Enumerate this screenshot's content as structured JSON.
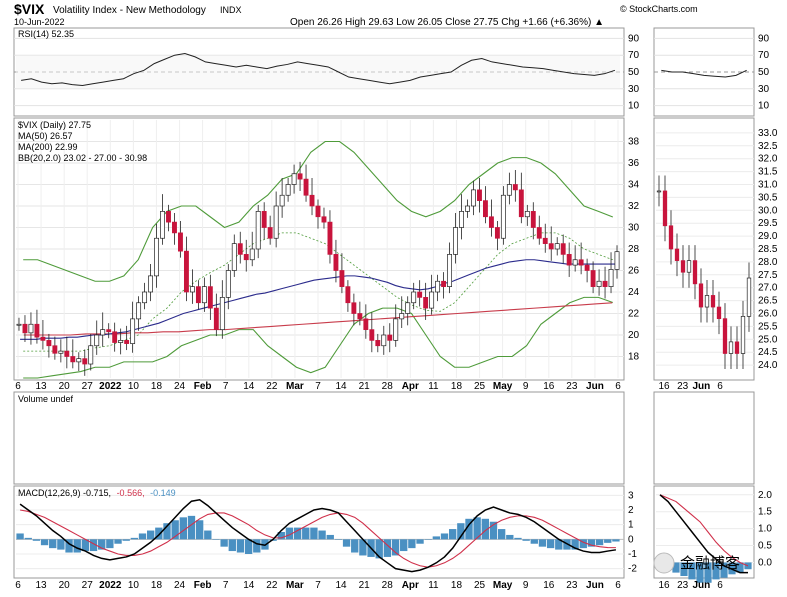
{
  "header": {
    "symbol": "$VIX",
    "name": "Volatility Index - New Methodology",
    "exchange": "INDX",
    "date": "10-Jun-2022",
    "source": "© StockCharts.com",
    "quote": "Open 26.26  High 29.63  Low 26.05  Close 27.75  Chg +1.66 (+6.36%) ▲"
  },
  "watermark": "金融博客",
  "colors": {
    "up": "#ffffff",
    "down": "#c8143c",
    "ma50": "#2b2b8c",
    "ma200": "#c83c4b",
    "bb": "#4f9b3a",
    "rsi": "#222222",
    "macd": "#000000",
    "signal": "#d0304a",
    "hist": "#4a90c2"
  },
  "chart_data": [
    {
      "type": "line",
      "panel": "rsi",
      "legend": "RSI(14) 52.35",
      "yticks": [
        10,
        30,
        50,
        70,
        90
      ],
      "ylim": [
        0,
        100
      ],
      "series": [
        {
          "name": "RSI(14)",
          "values": [
            40,
            42,
            38,
            36,
            37,
            35,
            34,
            36,
            38,
            40,
            42,
            48,
            52,
            60,
            65,
            70,
            72,
            68,
            62,
            60,
            58,
            56,
            58,
            56,
            54,
            57,
            59,
            62,
            60,
            58,
            56,
            50,
            44,
            42,
            40,
            38,
            36,
            38,
            40,
            44,
            46,
            48,
            50,
            58,
            64,
            66,
            62,
            60,
            58,
            56,
            55,
            54,
            52,
            50,
            48,
            47,
            46,
            48,
            52
          ]
        }
      ],
      "right": [
        52,
        50,
        50,
        48,
        46,
        45,
        44,
        46,
        52
      ]
    },
    {
      "type": "candlestick",
      "panel": "price",
      "legend": [
        "$VIX (Daily) 27.75",
        "MA(50) 26.57",
        "MA(200) 22.99",
        "BB(20,2.0) 23.02 - 27.00 - 30.98"
      ],
      "yticks": [
        18,
        20,
        22,
        24,
        26,
        28,
        30,
        32,
        34,
        36,
        38
      ],
      "ylim": [
        16,
        40
      ],
      "right_yticks": [
        24.0,
        24.5,
        25.0,
        25.5,
        26.0,
        26.5,
        27.0,
        27.5,
        28.0,
        28.5,
        29.0,
        29.5,
        30.0,
        30.5,
        31.0,
        31.5,
        32.0,
        32.5,
        33.0
      ],
      "right_ylim": [
        23.5,
        33.5
      ],
      "close": [
        21.0,
        20.2,
        21.0,
        19.8,
        19.5,
        19.0,
        18.3,
        18.5,
        18.0,
        17.5,
        17.8,
        17.3,
        19.0,
        20.0,
        20.5,
        20.3,
        19.3,
        19.5,
        19.2,
        21.5,
        23.0,
        24.0,
        25.5,
        29.0,
        31.5,
        30.5,
        29.5,
        27.8,
        24.0,
        24.5,
        23.0,
        24.5,
        22.5,
        20.5,
        23.5,
        26.0,
        28.5,
        27.5,
        27.0,
        28.0,
        31.5,
        30.0,
        29.0,
        32.0,
        33.0,
        34.0,
        35.0,
        34.5,
        33.0,
        32.0,
        31.0,
        30.5,
        27.5,
        26.0,
        24.5,
        23.0,
        22.0,
        21.5,
        20.5,
        19.5,
        19.0,
        20.0,
        19.5,
        21.5,
        22.0,
        23.0,
        24.0,
        23.5,
        22.5,
        24.0,
        25.0,
        24.5,
        27.5,
        30.0,
        31.5,
        32.0,
        33.5,
        32.5,
        31.0,
        30.0,
        29.0,
        33.0,
        34.0,
        33.5,
        31.0,
        31.5,
        30.0,
        29.0,
        28.5,
        28.0,
        28.5,
        27.5,
        26.5,
        27.0,
        26.5,
        26.0,
        24.5,
        25.0,
        24.5,
        26.1,
        27.75
      ],
      "ma50": [
        19.6,
        19.6,
        19.6,
        19.7,
        19.7,
        19.7,
        19.8,
        19.8,
        19.9,
        20.0,
        20.0,
        20.1,
        20.2,
        20.3,
        20.5,
        20.7,
        20.9,
        21.1,
        21.4,
        21.7,
        22.0,
        22.2,
        22.4,
        22.6,
        22.8,
        23.0,
        23.2,
        23.4,
        23.6,
        23.8,
        23.9,
        24.1,
        24.3,
        24.5,
        24.7,
        24.9,
        25.1,
        25.2,
        25.3,
        25.4,
        25.5,
        25.5,
        25.4,
        25.3,
        25.1,
        24.9,
        24.6,
        24.4,
        24.3,
        24.2,
        24.3,
        24.5,
        24.8,
        25.0,
        25.3,
        25.6,
        25.9,
        26.2,
        26.4,
        26.6,
        26.8,
        26.9,
        27.0,
        27.0,
        26.9,
        26.8,
        26.7,
        26.6,
        26.6,
        26.6,
        26.6,
        26.6,
        26.6,
        26.6
      ],
      "ma200": [
        20.0,
        20.0,
        20.0,
        20.0,
        20.1,
        20.1,
        20.1,
        20.2,
        20.2,
        20.3,
        20.3,
        20.4,
        20.5,
        20.5,
        20.6,
        20.7,
        20.8,
        20.9,
        21.0,
        21.1,
        21.2,
        21.3,
        21.4,
        21.5,
        21.6,
        21.7,
        21.8,
        21.9,
        22.0,
        22.1,
        22.2,
        22.3,
        22.4,
        22.5,
        22.6,
        22.7,
        22.8,
        22.9,
        22.99
      ],
      "bb_upper": [
        27.0,
        27.0,
        26.5,
        26.0,
        25.5,
        25.0,
        25.0,
        25.5,
        27.0,
        30.0,
        31.5,
        32.0,
        32.0,
        31.0,
        30.0,
        30.5,
        32.0,
        33.0,
        34.5,
        35.0,
        37.0,
        38.0,
        38.0,
        37.0,
        35.5,
        34.0,
        32.5,
        31.5,
        31.0,
        31.5,
        32.5,
        34.0,
        35.0,
        36.0,
        36.5,
        36.5,
        36.0,
        35.0,
        33.5,
        32.0,
        31.5,
        30.98
      ],
      "bb_lower": [
        16.0,
        16.0,
        16.2,
        16.4,
        16.6,
        17.0,
        17.0,
        17.5,
        17.5,
        17.5,
        18.0,
        19.0,
        19.5,
        20.0,
        20.0,
        20.5,
        20.5,
        19.0,
        18.0,
        17.0,
        16.5,
        17.0,
        19.0,
        21.0,
        22.0,
        22.5,
        22.5,
        22.0,
        20.0,
        18.0,
        17.0,
        17.0,
        17.5,
        18.0,
        18.0,
        19.0,
        21.0,
        22.0,
        23.0,
        23.5,
        23.5,
        23.02
      ],
      "bb_mid": [
        18.5,
        18.5,
        18.5,
        18.5,
        18.5,
        18.8,
        19.0,
        19.5,
        20.0,
        21.5,
        22.5,
        24.0,
        25.0,
        25.8,
        26.5,
        27.5,
        28.5,
        29.0,
        29.5,
        29.5,
        29.0,
        28.5,
        27.5,
        26.5,
        25.5,
        24.5,
        23.5,
        22.8,
        22.3,
        22.2,
        23.0,
        24.5,
        26.0,
        27.5,
        28.5,
        29.0,
        29.5,
        29.5,
        29.0,
        28.0,
        27.5,
        27.0
      ]
    },
    {
      "type": "bar",
      "panel": "volume",
      "legend": "Volume undef",
      "values": []
    },
    {
      "type": "line",
      "panel": "macd",
      "legend_prefix": "MACD(12,26,9) -0.715,",
      "legend_signal": "-0.566,",
      "legend_hist": "-0.149",
      "yticks": [
        -2,
        -1,
        0,
        1,
        2,
        3
      ],
      "ylim": [
        -2.5,
        3.5
      ],
      "right_yticks": [
        0.0,
        0.5,
        1.0,
        1.5,
        2.0
      ],
      "right_ylim": [
        -0.4,
        2.2
      ],
      "macd": [
        2.4,
        2.0,
        1.6,
        1.1,
        0.6,
        0.2,
        -0.3,
        -0.6,
        -0.8,
        -1.1,
        -1.3,
        -1.4,
        -1.3,
        -1.2,
        -1.0,
        -0.6,
        -0.2,
        0.3,
        0.9,
        1.5,
        2.1,
        2.6,
        2.7,
        2.3,
        1.8,
        1.3,
        0.8,
        0.4,
        0.0,
        -0.3,
        -0.4,
        0.0,
        0.6,
        1.1,
        1.4,
        1.7,
        2.0,
        2.1,
        2.0,
        1.8,
        1.2,
        0.6,
        0.0,
        -0.6,
        -1.2,
        -1.6,
        -2.0,
        -2.1,
        -2.2,
        -2.1,
        -1.9,
        -1.6,
        -1.2,
        -0.6,
        0.2,
        1.0,
        1.6,
        2.0,
        2.2,
        2.0,
        1.8,
        1.7,
        1.5,
        1.2,
        0.8,
        0.4,
        0.0,
        -0.3,
        -0.6,
        -0.8,
        -0.9,
        -0.9,
        -0.8,
        -0.715
      ],
      "signal": [
        2.0,
        1.9,
        1.7,
        1.5,
        1.2,
        0.9,
        0.6,
        0.3,
        0.0,
        -0.3,
        -0.6,
        -0.8,
        -1.0,
        -1.1,
        -1.1,
        -1.0,
        -0.8,
        -0.5,
        -0.2,
        0.2,
        0.6,
        1.0,
        1.4,
        1.7,
        1.8,
        1.8,
        1.6,
        1.3,
        1.0,
        0.6,
        0.3,
        0.1,
        0.1,
        0.3,
        0.6,
        0.9,
        1.2,
        1.5,
        1.7,
        1.8,
        1.7,
        1.5,
        1.1,
        0.6,
        0.1,
        -0.4,
        -0.9,
        -1.3,
        -1.6,
        -1.8,
        -1.9,
        -1.8,
        -1.6,
        -1.3,
        -0.9,
        -0.4,
        0.1,
        0.6,
        1.0,
        1.3,
        1.5,
        1.6,
        1.6,
        1.5,
        1.3,
        1.0,
        0.7,
        0.4,
        0.1,
        -0.2,
        -0.4,
        -0.5,
        -0.56,
        -0.566
      ],
      "hist": [
        0.4,
        0.1,
        -0.1,
        -0.4,
        -0.6,
        -0.7,
        -0.9,
        -0.9,
        -0.8,
        -0.8,
        -0.7,
        -0.6,
        -0.3,
        -0.1,
        0.1,
        0.4,
        0.6,
        0.8,
        1.1,
        1.3,
        1.5,
        1.6,
        1.3,
        0.6,
        0.0,
        -0.5,
        -0.8,
        -0.9,
        -1.0,
        -0.9,
        -0.7,
        -0.1,
        0.5,
        0.8,
        0.8,
        0.8,
        0.8,
        0.6,
        0.3,
        0.0,
        -0.5,
        -0.9,
        -1.1,
        -1.2,
        -1.3,
        -1.2,
        -1.1,
        -0.8,
        -0.6,
        -0.3,
        0.0,
        0.2,
        0.4,
        0.7,
        1.1,
        1.4,
        1.5,
        1.4,
        1.2,
        0.7,
        0.3,
        0.1,
        -0.1,
        -0.3,
        -0.5,
        -0.6,
        -0.7,
        -0.7,
        -0.7,
        -0.6,
        -0.5,
        -0.4,
        -0.24,
        -0.149
      ]
    }
  ],
  "x_labels": {
    "main": [
      "6",
      "13",
      "20",
      "27",
      "2022",
      "10",
      "18",
      "24",
      "Feb",
      "7",
      "14",
      "22",
      "Mar",
      "7",
      "14",
      "21",
      "28",
      "Apr",
      "11",
      "18",
      "25",
      "May",
      "9",
      "16",
      "23",
      "Jun",
      "6"
    ],
    "right": [
      "16",
      "23",
      "Jun",
      "6"
    ]
  },
  "rsi_right_yticks": [
    10,
    30,
    50,
    70,
    90
  ]
}
